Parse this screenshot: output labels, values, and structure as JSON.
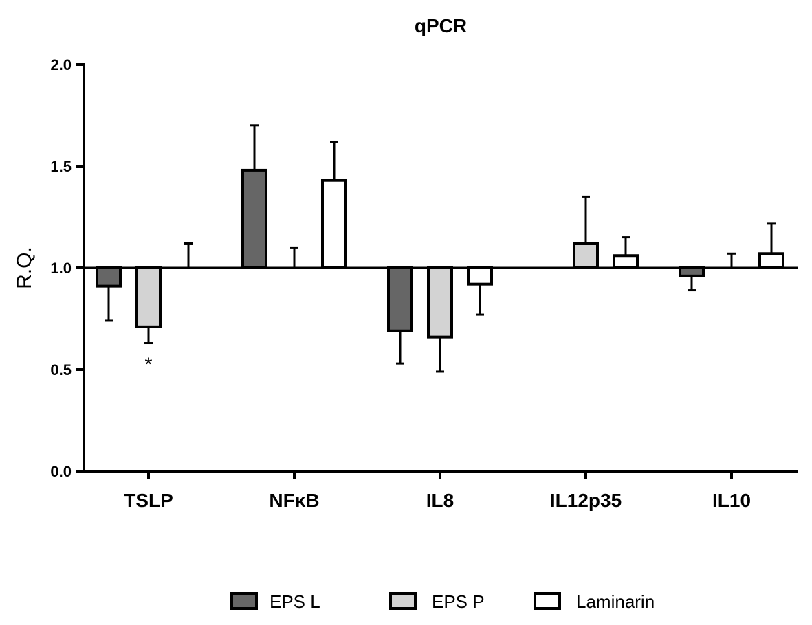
{
  "chart_data": {
    "type": "bar",
    "title": "qPCR",
    "xlabel": "",
    "ylabel": "R.Q.",
    "ylim": [
      0.0,
      2.0
    ],
    "baseline": 1.0,
    "yticks": [
      "0.0",
      "0.5",
      "1.0",
      "1.5",
      "2.0"
    ],
    "categories": [
      "TSLP",
      "NFκB",
      "IL8",
      "IL12p35",
      "IL10"
    ],
    "series": [
      {
        "name": "EPS L",
        "color": "#666666",
        "values": [
          0.91,
          1.48,
          0.69,
          1.0,
          0.96
        ],
        "errors": [
          0.17,
          0.22,
          0.16,
          0.0,
          0.07
        ]
      },
      {
        "name": "EPS P",
        "color": "#d3d3d3",
        "values": [
          0.71,
          1.0,
          0.66,
          1.12,
          1.0
        ],
        "errors": [
          0.08,
          0.1,
          0.17,
          0.23,
          0.07
        ]
      },
      {
        "name": "Laminarin",
        "color": "#ffffff",
        "values": [
          1.0,
          1.43,
          0.92,
          1.06,
          1.07
        ],
        "errors": [
          0.12,
          0.19,
          0.15,
          0.09,
          0.15
        ]
      }
    ],
    "annotations": [
      {
        "category": "TSLP",
        "series": "EPS P",
        "text": "*"
      }
    ],
    "legend_position": "bottom-center"
  }
}
